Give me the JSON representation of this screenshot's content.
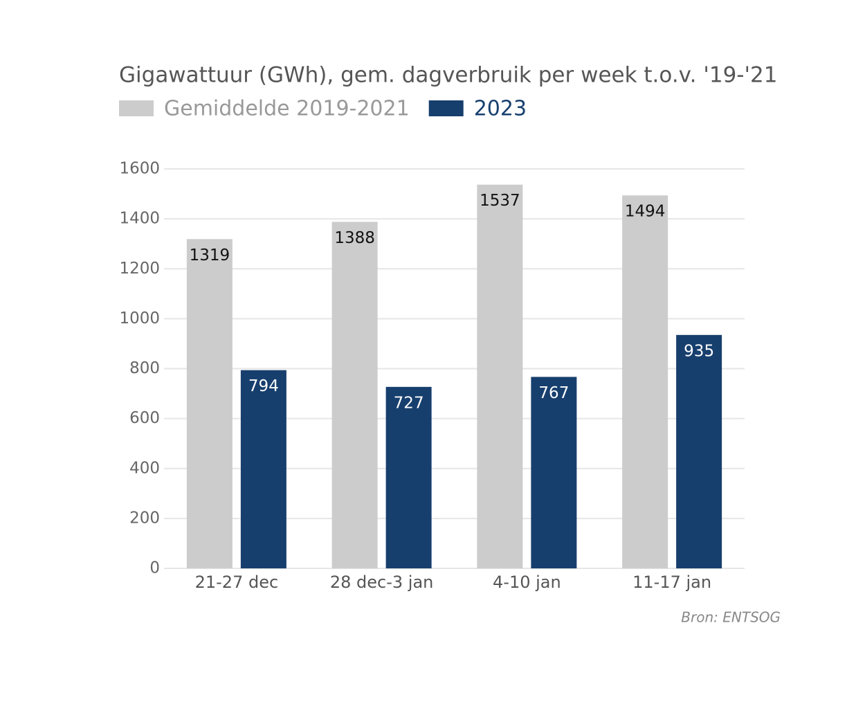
{
  "chart_data": {
    "type": "bar",
    "title": "Gigawattuur (GWh), gem. dagverbruik per week t.o.v. '19-'21",
    "categories": [
      "21-27 dec",
      "28 dec-3 jan",
      "4-10 jan",
      "11-17 jan"
    ],
    "series": [
      {
        "name": "Gemiddelde 2019-2021",
        "color": "#cccccc",
        "label_color": "#111111",
        "values": [
          1319,
          1388,
          1537,
          1494
        ]
      },
      {
        "name": "2023",
        "color": "#173f6e",
        "label_color": "#ffffff",
        "values": [
          794,
          727,
          767,
          935
        ]
      }
    ],
    "ylim": [
      0,
      1600
    ],
    "yticks": [
      0,
      200,
      400,
      600,
      800,
      1000,
      1200,
      1400,
      1600
    ],
    "grid": true,
    "source": "Bron: ENTSOG"
  }
}
